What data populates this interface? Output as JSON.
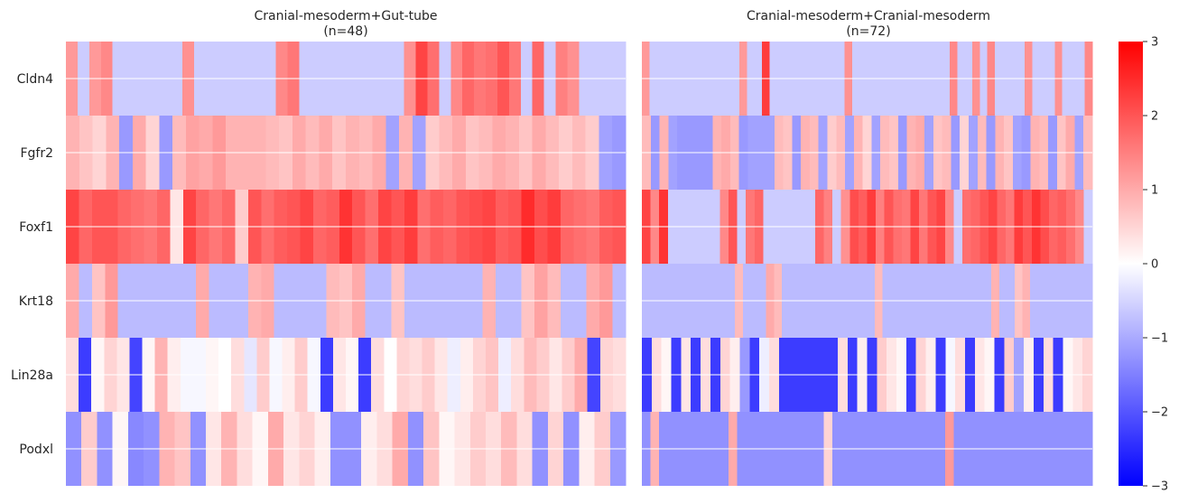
{
  "chart_data": {
    "type": "heatmap",
    "genes": [
      "Cldn4",
      "Fgfr2",
      "Foxf1",
      "Krt18",
      "Lin28a",
      "Podxl"
    ],
    "panels": [
      {
        "title": "Cranial-mesoderm+Gut-tube",
        "subtitle": "(n=48)",
        "n": 48,
        "values": {
          "Cldn4": [
            1.2,
            -0.6,
            1.2,
            1.4,
            -0.6,
            -0.6,
            -0.6,
            -0.6,
            -0.6,
            -0.6,
            1.3,
            -0.6,
            -0.6,
            -0.6,
            -0.6,
            -0.6,
            -0.6,
            -0.6,
            1.4,
            1.6,
            -0.6,
            -0.6,
            -0.6,
            -0.6,
            -0.6,
            -0.6,
            -0.6,
            -0.6,
            -0.6,
            1.3,
            2.2,
            1.7,
            -0.6,
            1.4,
            1.8,
            1.6,
            1.7,
            2.0,
            1.6,
            -0.6,
            1.8,
            -0.6,
            1.5,
            1.3,
            -0.6,
            -0.6,
            -0.6,
            -0.6
          ],
          "Fgfr2": [
            0.9,
            0.7,
            0.5,
            0.9,
            -1.2,
            1.0,
            0.5,
            -1.2,
            0.8,
            1.1,
            1.0,
            1.2,
            0.9,
            0.9,
            0.9,
            0.8,
            0.7,
            1.0,
            0.8,
            1.0,
            0.7,
            0.9,
            0.8,
            1.0,
            -1.1,
            0.9,
            -1.1,
            0.6,
            0.8,
            1.0,
            0.7,
            0.8,
            1.0,
            0.9,
            0.7,
            1.0,
            0.8,
            0.6,
            0.8,
            0.6,
            -1.1,
            -1.2
          ],
          "Foxf1": [
            2.2,
            1.8,
            2.0,
            2.0,
            1.8,
            1.7,
            1.6,
            1.8,
            0.3,
            2.2,
            1.8,
            1.6,
            1.8,
            0.6,
            2.0,
            1.7,
            1.9,
            2.0,
            2.2,
            1.8,
            1.9,
            2.4,
            2.0,
            1.7,
            2.2,
            2.0,
            2.3,
            1.7,
            1.9,
            1.8,
            2.0,
            2.1,
            2.2,
            1.9,
            2.0,
            2.5,
            2.1,
            2.3,
            1.8,
            1.7,
            1.6,
            1.9,
            2.0
          ],
          "Krt18": [
            1.0,
            -0.8,
            0.7,
            1.2,
            -0.8,
            -0.8,
            -0.8,
            -0.8,
            -0.8,
            -0.8,
            1.0,
            -0.8,
            -0.8,
            -0.8,
            0.9,
            1.0,
            -0.8,
            -0.8,
            -0.8,
            -0.8,
            0.8,
            0.7,
            1.0,
            -0.8,
            -0.8,
            0.7,
            -0.8,
            -0.8,
            -0.8,
            -0.8,
            -0.8,
            -0.8,
            0.9,
            -0.8,
            -0.8,
            0.7,
            1.1,
            0.8,
            -0.8,
            -0.8,
            1.0,
            1.2,
            -0.8
          ],
          "Lin28a": [
            0.4,
            -2.3,
            0.1,
            0.5,
            0.3,
            -2.2,
            0.1,
            0.9,
            0.2,
            -0.1,
            -0.1,
            0.1,
            0.0,
            0.4,
            -0.3,
            0.6,
            -0.1,
            0.2,
            0.6,
            -0.1,
            -2.3,
            0.3,
            0.1,
            -2.3,
            0.4,
            0.0,
            0.5,
            0.4,
            0.6,
            0.3,
            -0.2,
            0.2,
            0.5,
            0.7,
            -0.2,
            0.4,
            0.8,
            0.6,
            0.3,
            0.6,
            1.0,
            -2.2,
            0.5,
            0.4
          ],
          "Podxl": [
            -1.3,
            0.6,
            -1.3,
            0.1,
            -1.4,
            -1.3,
            0.9,
            0.7,
            -1.3,
            0.3,
            0.9,
            0.4,
            0.1,
            1.0,
            0.3,
            0.5,
            0.2,
            -1.3,
            -1.3,
            0.2,
            0.4,
            1.0,
            -1.3,
            0.7,
            0.1,
            0.3,
            0.6,
            0.4,
            0.8,
            0.4,
            -1.3,
            0.5,
            -1.3,
            0.2,
            0.6,
            -1.2
          ]
        }
      },
      {
        "title": "Cranial-mesoderm+Cranial-mesoderm",
        "subtitle": "(n=72)",
        "n": 72,
        "values": {
          "Cldn4": [
            1.2,
            -0.6,
            -0.6,
            -0.6,
            -0.6,
            -0.6,
            -0.6,
            -0.6,
            -0.6,
            -0.6,
            -0.6,
            -0.6,
            -0.6,
            1.2,
            -0.6,
            -0.6,
            2.3,
            -0.6,
            -0.6,
            -0.6,
            -0.6,
            -0.6,
            -0.6,
            -0.6,
            -0.6,
            -0.6,
            -0.6,
            1.3,
            -0.6,
            -0.6,
            -0.6,
            -0.6,
            -0.6,
            -0.6,
            -0.6,
            -0.6,
            -0.6,
            -0.6,
            -0.6,
            -0.6,
            -0.6,
            1.4,
            -0.6,
            -0.6,
            1.3,
            -0.6,
            1.4,
            -0.6,
            -0.6,
            -0.6,
            -0.6,
            1.3,
            -0.6,
            -0.6,
            -0.6,
            1.3,
            -0.6,
            -0.6,
            -0.6,
            1.4
          ],
          "Fgfr2": [
            0.8,
            -1.2,
            0.9,
            -1.1,
            -1.2,
            -1.2,
            -1.2,
            -1.2,
            0.9,
            1.0,
            0.8,
            -1.2,
            -1.1,
            -1.1,
            -1.1,
            0.8,
            0.7,
            -1.2,
            0.9,
            0.8,
            -1.1,
            0.6,
            0.8,
            -1.1,
            0.9,
            0.5,
            -1.1,
            0.8,
            0.7,
            -1.2,
            0.9,
            1.0,
            -1.1,
            0.7,
            0.8,
            -1.2,
            0.5,
            -1.1,
            0.8,
            -1.2,
            0.9,
            0.7,
            -1.1,
            -1.2,
            0.9,
            0.8,
            -1.2,
            0.7,
            1.0,
            -1.1,
            0.8
          ],
          "Foxf1": [
            2.2,
            1.4,
            2.4,
            -0.6,
            -0.6,
            -0.6,
            -0.6,
            -0.6,
            -0.6,
            1.4,
            2.0,
            -0.6,
            1.6,
            1.8,
            -0.6,
            -0.6,
            -0.6,
            -0.6,
            -0.6,
            -0.6,
            1.8,
            1.5,
            -0.6,
            1.3,
            2.1,
            1.9,
            2.3,
            1.5,
            2.0,
            1.7,
            1.6,
            2.2,
            1.6,
            2.0,
            2.2,
            1.4,
            -0.6,
            1.7,
            1.8,
            2.0,
            2.2,
            1.8,
            1.6,
            2.3,
            2.0,
            2.4,
            2.1,
            1.8,
            1.9,
            1.7,
            1.4,
            -0.6
          ],
          "Krt18": [
            -0.8,
            -0.8,
            -0.8,
            -0.8,
            -0.8,
            -0.8,
            -0.8,
            -0.8,
            -0.8,
            -0.8,
            -0.8,
            -0.8,
            0.8,
            -0.8,
            -0.8,
            -0.8,
            1.0,
            0.8,
            -0.8,
            -0.8,
            -0.8,
            -0.8,
            -0.8,
            -0.8,
            -0.8,
            -0.8,
            -0.8,
            -0.8,
            -0.8,
            -0.8,
            0.8,
            -0.8,
            -0.8,
            -0.8,
            -0.8,
            -0.8,
            -0.8,
            -0.8,
            -0.8,
            -0.8,
            -0.8,
            -0.8,
            -0.8,
            -0.8,
            -0.8,
            0.9,
            -0.8,
            -0.8,
            0.7,
            0.9,
            -0.8,
            -0.8,
            -0.8,
            -0.8,
            -0.8,
            -0.8,
            -0.8,
            -0.8
          ],
          "Lin28a": [
            -2.3,
            0.4,
            0.1,
            -2.3,
            0.3,
            -2.3,
            0.4,
            -2.3,
            0.5,
            0.2,
            -1.2,
            -2.3,
            -0.2,
            0.4,
            -2.3,
            -2.3,
            -2.3,
            -2.3,
            -2.3,
            -2.3,
            0.4,
            -2.3,
            0.2,
            -2.3,
            0.6,
            0.3,
            0.1,
            -2.3,
            0.5,
            0.2,
            -2.3,
            -0.1,
            0.4,
            -2.3,
            0.3,
            0.1,
            -2.3,
            0.6,
            -1.1,
            0.2,
            -2.3,
            0.4,
            -2.3,
            0.1,
            0.3,
            0.5
          ],
          "Podxl": [
            -1.3,
            0.9,
            -1.3,
            -1.3,
            -1.3,
            -1.3,
            -1.3,
            -1.3,
            -1.3,
            -1.3,
            1.0,
            -1.3,
            -1.3,
            -1.3,
            -1.3,
            -1.3,
            -1.3,
            -1.3,
            -1.3,
            -1.3,
            -1.3,
            0.5,
            -1.3,
            -1.3,
            -1.3,
            -1.3,
            -1.3,
            -1.3,
            -1.3,
            -1.3,
            -1.3,
            -1.3,
            -1.3,
            -1.3,
            -1.3,
            1.2,
            -1.3,
            -1.3,
            -1.3,
            -1.3,
            -1.3,
            -1.3,
            -1.3,
            -1.3,
            -1.3,
            -1.3,
            -1.3,
            -1.3,
            -1.3,
            -1.3,
            -1.3,
            -1.3
          ]
        }
      }
    ],
    "colorbar": {
      "min": -3,
      "max": 3,
      "ticks": [
        "-3",
        "-2",
        "-1",
        "0",
        "1",
        "2",
        "3"
      ],
      "colormap": "bwr",
      "low_color": "#0000ff",
      "mid_color": "#ffffff",
      "high_color": "#ff0000"
    },
    "row_separator_color": "#ffffff",
    "grid": false
  }
}
